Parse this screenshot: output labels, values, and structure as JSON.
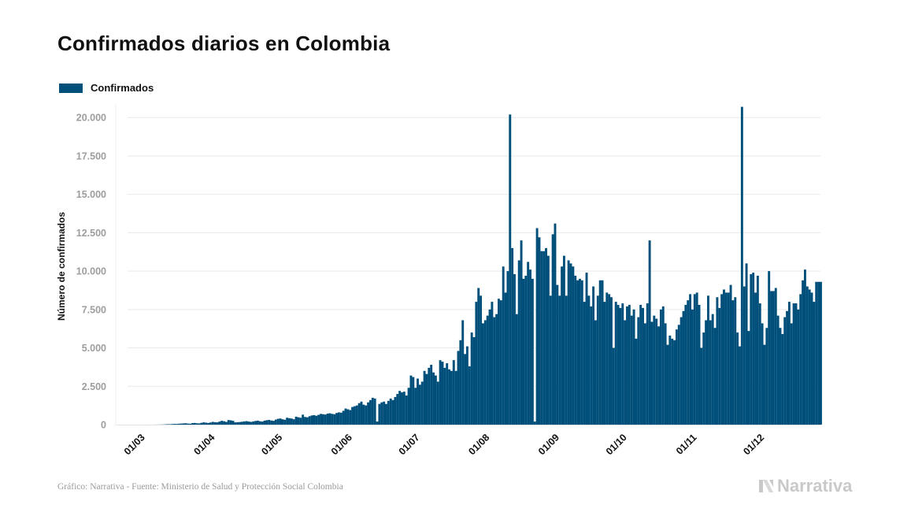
{
  "title": "Confirmados diarios en Colombia",
  "legend": {
    "label": "Confirmados",
    "color": "#004f7a"
  },
  "footer": {
    "source": "Gráfico: Narrativa - Fuente: Ministerio de Salud y Protección Social Colombia"
  },
  "brand": {
    "name": "Narrativa",
    "icon": "narrativa-logo-icon"
  },
  "chart_data": {
    "type": "bar",
    "title": "Confirmados diarios en Colombia",
    "xlabel": "",
    "ylabel": "Número de confirmados",
    "ylim": [
      0,
      21500
    ],
    "grid": true,
    "legend_position": "top-left",
    "bar_color": "#004f7a",
    "y_ticks": [
      0,
      2500,
      5000,
      7500,
      10000,
      12500,
      15000,
      17500,
      20000
    ],
    "y_tick_labels": [
      "0",
      "2.500",
      "5.000",
      "7.500",
      "10.000",
      "12.500",
      "15.000",
      "17.500",
      "20.000"
    ],
    "x_tick_labels": [
      "01/03",
      "01/04",
      "01/05",
      "01/06",
      "01/07",
      "01/08",
      "01/09",
      "01/10",
      "01/11",
      "01/12"
    ],
    "x_tick_dates": [
      "2020-03-01",
      "2020-04-01",
      "2020-05-01",
      "2020-06-01",
      "2020-07-01",
      "2020-08-01",
      "2020-09-01",
      "2020-10-01",
      "2020-11-01",
      "2020-12-01"
    ],
    "x_start": "2020-03-06",
    "series": [
      {
        "values": [
          1,
          0,
          1,
          0,
          2,
          3,
          5,
          8,
          12,
          20,
          30,
          25,
          40,
          50,
          45,
          60,
          70,
          80,
          90,
          70,
          60,
          100,
          110,
          90,
          80,
          120,
          150,
          130,
          110,
          140,
          180,
          160,
          150,
          200,
          250,
          220,
          180,
          300,
          280,
          250,
          150,
          160,
          170,
          190,
          210,
          230,
          200,
          180,
          210,
          240,
          260,
          220,
          200,
          260,
          290,
          310,
          270,
          250,
          330,
          380,
          400,
          350,
          320,
          450,
          420,
          400,
          350,
          520,
          480,
          450,
          650,
          500,
          480,
          550,
          600,
          620,
          580,
          640,
          700,
          680,
          660,
          720,
          740,
          700,
          680,
          760,
          800,
          780,
          900,
          1050,
          1000,
          950,
          1150,
          1200,
          1250,
          1400,
          1500,
          1300,
          1250,
          1450,
          1600,
          1750,
          1700,
          200,
          1350,
          1450,
          1500,
          1350,
          1550,
          1700,
          1600,
          1800,
          2000,
          2200,
          2100,
          2150,
          1900,
          2400,
          3200,
          3100,
          2400,
          3000,
          2600,
          2800,
          3500,
          3300,
          3700,
          3900,
          3400,
          3200,
          2800,
          4200,
          4100,
          3700,
          4000,
          3600,
          3500,
          4200,
          3500,
          4800,
          5500,
          6800,
          4600,
          5100,
          3800,
          6000,
          5700,
          8000,
          8900,
          8400,
          6600,
          6800,
          7100,
          7500,
          8000,
          7000,
          7200,
          8200,
          8100,
          10300,
          8600,
          10000,
          20200,
          11500,
          9800,
          7200,
          10700,
          12000,
          9500,
          9700,
          10600,
          10100,
          9500,
          200,
          12800,
          12200,
          11300,
          11300,
          11500,
          11000,
          8400,
          12400,
          13100,
          9100,
          8400,
          10300,
          11000,
          8400,
          10700,
          10500,
          10300,
          9700,
          9400,
          9500,
          9400,
          8000,
          9900,
          8400,
          7700,
          9000,
          6800,
          8400,
          9400,
          9400,
          8000,
          8600,
          8500,
          8300,
          5000,
          8000,
          7800,
          7600,
          7900,
          6800,
          7700,
          7800,
          7100,
          7500,
          5600,
          7000,
          7800,
          7600,
          6600,
          7900,
          12000,
          6700,
          7100,
          6900,
          6400,
          7500,
          7700,
          6600,
          5200,
          5800,
          5600,
          5500,
          6200,
          6500,
          7000,
          7400,
          7800,
          8100,
          8500,
          7500,
          8500,
          8600,
          7800,
          5000,
          6000,
          6800,
          8400,
          6800,
          7200,
          6300,
          8300,
          7600,
          8500,
          8800,
          8600,
          8600,
          9100,
          8100,
          8300,
          6000,
          5100,
          20700,
          9000,
          10500,
          6100,
          9800,
          9900,
          8600,
          9700,
          7900,
          6600,
          5200,
          6300,
          10000,
          8700,
          8700,
          8900,
          7100,
          6300,
          5900,
          7000,
          7400,
          8000,
          6600,
          7900,
          7900,
          7500,
          8500,
          9400,
          10100,
          9000,
          8800,
          8600,
          8000,
          9300,
          9300,
          9300
        ]
      }
    ]
  }
}
